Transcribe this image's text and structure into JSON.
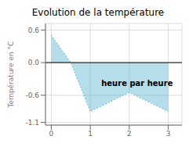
{
  "chart_data": {
    "type": "area",
    "title": "Evolution de la température",
    "y_label": "Température en °C",
    "x": [
      0,
      0.5,
      1,
      2,
      3
    ],
    "values": [
      0.5,
      0.0,
      -0.9,
      -0.55,
      -0.9
    ],
    "color": "#5ab4d0",
    "line_style": "dotted",
    "xlim": [
      -0.15,
      3.35
    ],
    "ylim": [
      -1.15,
      0.72
    ],
    "xticks": [
      0,
      1,
      2,
      3
    ],
    "yticks": [
      -1.1,
      -0.6,
      {
        "value": 0,
        "label": "0.0"
      },
      0.6
    ],
    "grid": true,
    "annotations": [
      {
        "text": "heure par heure",
        "x": 2.2,
        "y": -0.38
      }
    ]
  }
}
